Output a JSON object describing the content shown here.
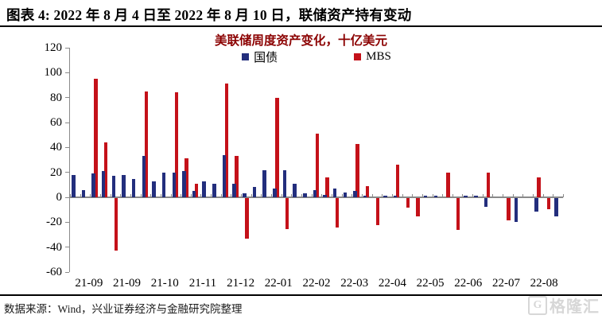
{
  "header": {
    "title": "图表 4: 2022 年 8 月 4 日至 2022 年 8 月 10 日，联储资产持有变动"
  },
  "chart": {
    "title": "美联储周度资产变化，十亿美元"
  },
  "legend": [
    {
      "label": "国债",
      "color": "#232E7D"
    },
    {
      "label": "MBS",
      "color": "#C41119"
    }
  ],
  "footer": {
    "source": "数据来源：Wind，兴业证券经济与金融研究院整理"
  },
  "watermark": {
    "logo_letter": "G",
    "text": "格隆汇"
  },
  "colors": {
    "treasury_bar": "#232E7D",
    "mbs_bar": "#C41119",
    "chart_title": "#8B0000",
    "axis": "#8a8a8a",
    "watermark": "#d7d7d7"
  },
  "chart_data": {
    "type": "bar",
    "title": "美联储周度资产变化，十亿美元",
    "ylabel": "十亿美元",
    "ylim": [
      -60,
      120
    ],
    "y_ticks": [
      120,
      100,
      80,
      60,
      40,
      20,
      0,
      -20,
      -40,
      -60
    ],
    "grid": false,
    "legend_position": "top",
    "x_tick_labels": [
      "21-09",
      "21-09",
      "21-10",
      "21-11",
      "21-12",
      "22-01",
      "22-02",
      "22-03",
      "22-04",
      "22-05",
      "22-06",
      "22-07",
      "22-08"
    ],
    "x_unit": "week",
    "series": [
      {
        "name": "国债",
        "color": "#232E7D",
        "values": [
          18,
          6,
          19,
          21,
          17,
          18,
          15,
          33,
          13,
          20,
          20,
          21,
          5,
          13,
          11,
          34,
          11,
          3,
          8,
          22,
          7,
          22,
          11,
          3,
          6,
          2,
          7,
          4,
          5,
          1,
          0,
          1,
          1,
          0,
          0,
          1,
          1,
          0,
          0,
          1,
          1,
          -7,
          0,
          0,
          -19,
          0,
          -11,
          0,
          -15
        ]
      },
      {
        "name": "MBS",
        "color": "#C41119",
        "values": [
          0,
          0,
          95,
          44,
          -42,
          0,
          0,
          85,
          0,
          0,
          84,
          31,
          11,
          0,
          0,
          91,
          33,
          -33,
          0,
          0,
          80,
          -25,
          0,
          0,
          51,
          16,
          -24,
          0,
          43,
          9,
          -22,
          0,
          26,
          -8,
          -15,
          0,
          0,
          20,
          -26,
          0,
          0,
          20,
          0,
          -18,
          0,
          0,
          16,
          -9,
          0
        ]
      }
    ]
  }
}
